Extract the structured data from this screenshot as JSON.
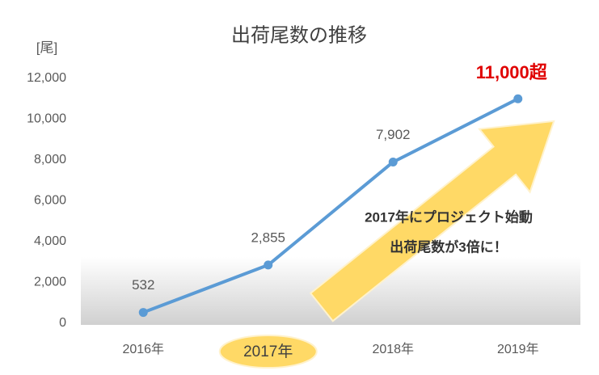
{
  "chart_data": {
    "type": "line",
    "title": "出荷尾数の推移",
    "y_axis_label": "[尾]",
    "categories": [
      "2016年",
      "2017年",
      "2018年",
      "2019年"
    ],
    "values": [
      532,
      2855,
      7902,
      11000
    ],
    "value_labels": [
      "532",
      "2,855",
      "7,902",
      "11,000超"
    ],
    "color": "#5b9bd5",
    "highlight_category": 1,
    "ylim": [
      0,
      12000
    ],
    "yticks": [
      0,
      {
        "value": 2000,
        "label": "2,000"
      },
      {
        "value": 4000,
        "label": "4,000"
      },
      {
        "value": 6000,
        "label": "6,000"
      },
      {
        "value": 8000,
        "label": "8,000"
      },
      {
        "value": 10000,
        "label": "10,000"
      },
      {
        "value": 12000,
        "label": "12,000"
      }
    ],
    "grid": false,
    "annotation": [
      "2017年にプロジェクト始動",
      "出荷尾数が3倍に！"
    ]
  }
}
